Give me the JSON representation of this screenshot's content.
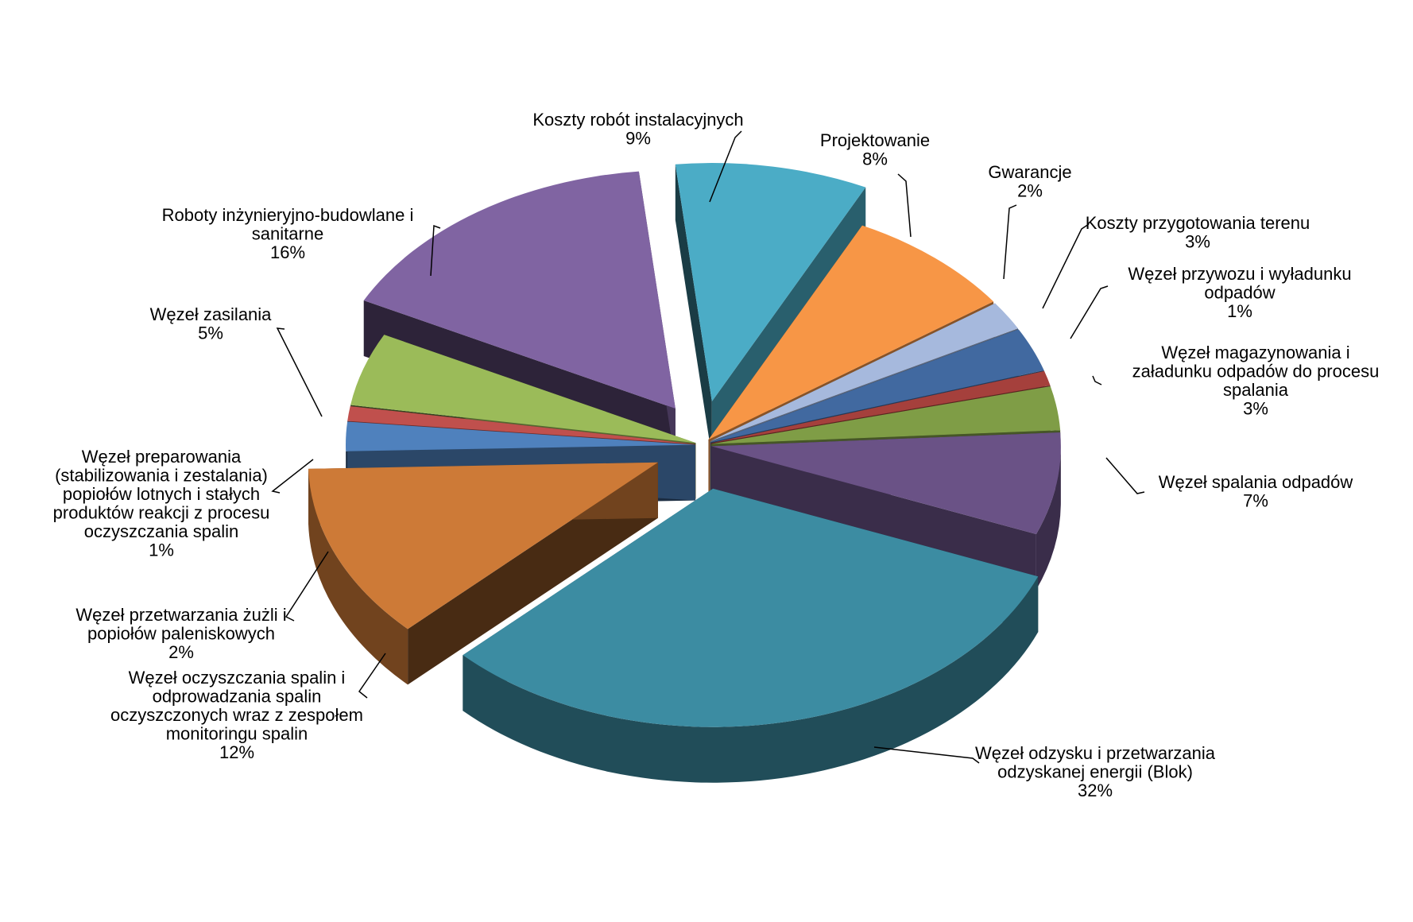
{
  "chart_data": {
    "type": "pie",
    "title": "",
    "three_d": true,
    "exploded": true,
    "legend": "none",
    "slices": [
      {
        "label": [
          "Koszty robót instalacyjnych"
        ],
        "pct": "9%",
        "value": 9,
        "color": "#4BACC6"
      },
      {
        "label": [
          "Projektowanie"
        ],
        "pct": "8%",
        "value": 8,
        "color": "#F79646"
      },
      {
        "label": [
          "Gwarancje"
        ],
        "pct": "2%",
        "value": 2,
        "color": "#A6B9DD"
      },
      {
        "label": [
          "Koszty przygotowania terenu"
        ],
        "pct": "3%",
        "value": 3,
        "color": "#4169A0"
      },
      {
        "label": [
          "Węzeł przywozu i wyładunku",
          "odpadów"
        ],
        "pct": "1%",
        "value": 1,
        "color": "#A5403C"
      },
      {
        "label": [
          "Węzeł magazynowania i",
          "załadunku odpadów do procesu",
          "spalania"
        ],
        "pct": "3%",
        "value": 3,
        "color": "#7F9D46"
      },
      {
        "label": [
          "Węzeł spalania odpadów"
        ],
        "pct": "7%",
        "value": 7,
        "color": "#6A5286"
      },
      {
        "label": [
          "Węzeł odzysku i przetwarzania",
          "odzyskanej energii (Blok)"
        ],
        "pct": "32%",
        "value": 32,
        "color": "#3C8CA2"
      },
      {
        "label": [
          "Węzeł oczyszczania spalin i",
          "odprowadzania spalin",
          "oczyszczonych wraz z zespołem",
          "monitoringu spalin"
        ],
        "pct": "12%",
        "value": 12,
        "color": "#CD7A37"
      },
      {
        "label": [
          "Węzeł przetwarzania żużli i",
          "popiołów paleniskowych"
        ],
        "pct": "2%",
        "value": 2,
        "color": "#4F81BD"
      },
      {
        "label": [
          "Węzeł preparowania",
          "(stabilizowania i zestalania)",
          "popiołów lotnych i stałych",
          "produktów reakcji z procesu",
          "oczyszczania spalin"
        ],
        "pct": "1%",
        "value": 1,
        "color": "#C0504D"
      },
      {
        "label": [
          "Węzeł zasilania"
        ],
        "pct": "5%",
        "value": 5,
        "color": "#9BBB59"
      },
      {
        "label": [
          "Roboty inżynieryjno-budowlane i",
          "sanitarne"
        ],
        "pct": "16%",
        "value": 16,
        "color": "#8064A2"
      }
    ]
  }
}
